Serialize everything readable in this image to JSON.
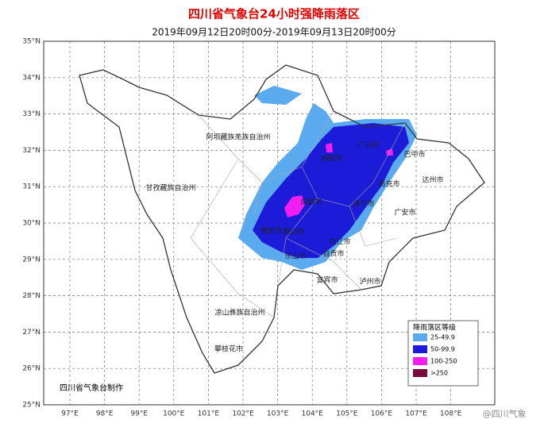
{
  "header": {
    "title": "四川省气象台24小时强降雨落区",
    "subtitle": "2019年09月12日20时00分-2019年09月13日20时00分"
  },
  "lat_labels": [
    "35°N",
    "34°N",
    "33°N",
    "32°N",
    "31°N",
    "30°N",
    "29°N",
    "28°N",
    "27°N",
    "26°N",
    "25°N"
  ],
  "lon_labels": [
    "97°E",
    "98°E",
    "99°E",
    "100°E",
    "101°E",
    "102°E",
    "103°E",
    "104°E",
    "105°E",
    "106°E",
    "107°E",
    "108°E"
  ],
  "places": [
    "阿坝藏族羌族自治州",
    "甘孜藏族自治州",
    "凉山彝族自治州",
    "攀枝花市",
    "广元市",
    "巴中市",
    "达州市",
    "绵阳市",
    "南充市",
    "遂宁市",
    "广安市",
    "成都市",
    "雅安市",
    "眉山市",
    "内江市",
    "乐山市",
    "自贡市",
    "宜宾市",
    "泸州市"
  ],
  "legend": {
    "title": "降雨落区等级",
    "items": [
      {
        "label": "25-49.9",
        "color": "#5aaaf0"
      },
      {
        "label": "50-99.9",
        "color": "#1b1bd8"
      },
      {
        "label": "100-250",
        "color": "#f01ef0"
      },
      {
        "label": ">250",
        "color": "#7a0a3c"
      }
    ]
  },
  "credit": "四川省气象台制作",
  "watermark": "@四川气象"
}
